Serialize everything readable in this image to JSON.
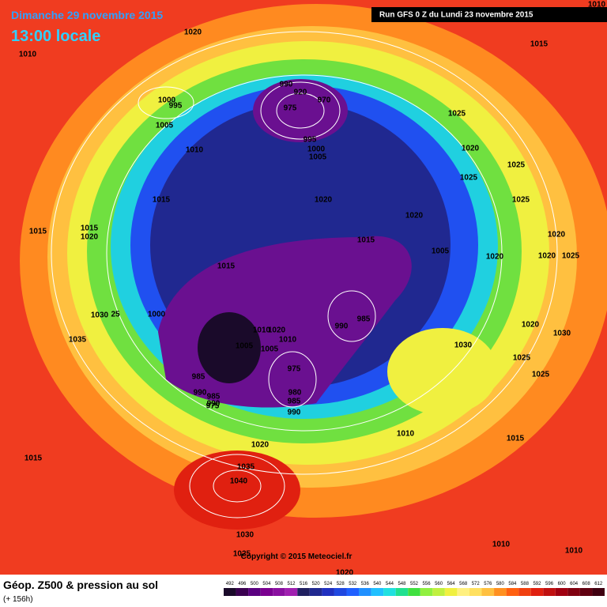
{
  "header": {
    "date": "Dimanche 29 novembre 2015",
    "time": "13:00 locale",
    "run": "Run GFS 0 Z du Lundi 23 novembre 2015"
  },
  "footer": {
    "title": "Géop. Z500 & pression au sol",
    "lead": "(+ 156h)",
    "copyright": "Copyright © 2015 Meteociel.fr"
  },
  "pressure_labels": [
    1020,
    1010,
    1015,
    1000,
    995,
    1005,
    1010,
    1015,
    1015,
    1015,
    1020,
    990,
    920,
    970,
    975,
    995,
    1000,
    1005,
    1020,
    1020,
    1015,
    1005,
    1025,
    1020,
    1025,
    1025,
    1025,
    1020,
    1020,
    1025,
    1020,
    1015,
    1000,
    1030,
    25,
    1035,
    990,
    985,
    1010,
    1020,
    1010,
    1005,
    1005,
    975,
    985,
    980,
    985,
    990,
    990,
    985,
    990,
    975,
    1030,
    1020,
    1030,
    1025,
    1025,
    1010,
    1015,
    1020,
    1015,
    1035,
    1040,
    1030,
    1025,
    1020,
    1010,
    1010,
    1010
  ],
  "legend": {
    "values": [
      492,
      496,
      500,
      504,
      508,
      512,
      516,
      520,
      524,
      528,
      532,
      536,
      540,
      544,
      548,
      552,
      556,
      560,
      564,
      568,
      572,
      576,
      580,
      584,
      588,
      592,
      596,
      600,
      604,
      608,
      612
    ],
    "colors": [
      "#1a0a2a",
      "#3a0050",
      "#5a0080",
      "#7a0090",
      "#8a10a0",
      "#a020b0",
      "#202060",
      "#202890",
      "#2030c0",
      "#2048e0",
      "#2060ff",
      "#2090ff",
      "#20c0ff",
      "#20e0e0",
      "#20e090",
      "#40e040",
      "#90f040",
      "#c0f040",
      "#f0f040",
      "#fff080",
      "#ffe060",
      "#ffc040",
      "#ff9020",
      "#ff6010",
      "#f04010",
      "#e02010",
      "#c01010",
      "#a00010",
      "#800010",
      "#600010",
      "#400010"
    ]
  }
}
